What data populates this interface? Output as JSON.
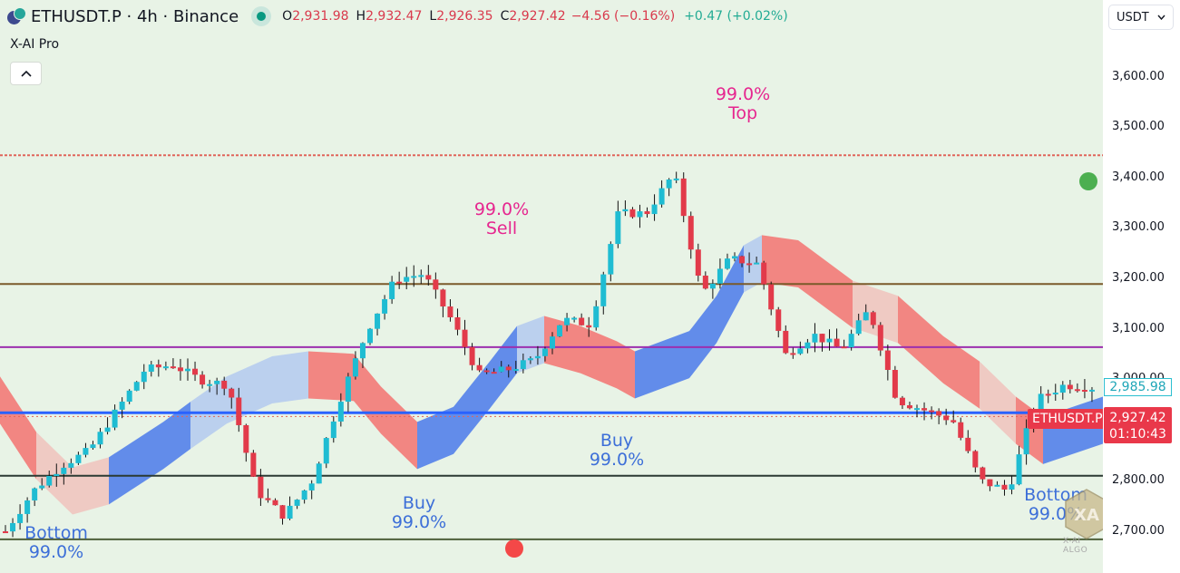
{
  "header": {
    "symbol_title": "ETHUSDT.P · 4h · Binance",
    "ohlc": [
      {
        "key": "O",
        "value": "2,931.98"
      },
      {
        "key": "H",
        "value": "2,932.47"
      },
      {
        "key": "L",
        "value": "2,926.35"
      },
      {
        "key": "C",
        "value": "2,927.42"
      }
    ],
    "change": "−4.56 (−0.16%)",
    "post_change": "+0.47 (+0.02%)",
    "indicator_name": "X-AI Pro",
    "collapse_icon": "chevron-up-icon"
  },
  "price_axis": {
    "currency": "USDT",
    "ticks": [
      "3,600.00",
      "3,500.00",
      "3,400.00",
      "3,300.00",
      "3,200.00",
      "3,100.00",
      "3,000.00",
      "2,900.00",
      "2,800.00",
      "2,700.00"
    ],
    "pre_market_price": "2,985.98",
    "last_price": "2,927.42",
    "countdown": "01:10:43",
    "symbol_label": "ETHUSDT.P"
  },
  "annotations": [
    {
      "id": "bottom-left",
      "line1": "Bottom",
      "line2": "99.0%",
      "color": "blue"
    },
    {
      "id": "buy-1",
      "line1": "Buy",
      "line2": "99.0%",
      "color": "blue"
    },
    {
      "id": "sell-1",
      "line1": "99.0%",
      "line2": "Sell",
      "color": "pink"
    },
    {
      "id": "buy-2",
      "line1": "Buy",
      "line2": "99.0%",
      "color": "blue"
    },
    {
      "id": "top-1",
      "line1": "99.0%",
      "line2": "Top",
      "color": "pink"
    },
    {
      "id": "bottom-right",
      "line1": "Bottom",
      "line2": "99.0%",
      "color": "blue"
    }
  ],
  "watermark": {
    "text": "X-AI ALGO"
  },
  "colors": {
    "up": "#1fbcd2",
    "down": "#e23a4a",
    "band_bull": "#5b86ea",
    "band_bull_light": "#b8cdee",
    "band_bear": "#f2807c",
    "band_bear_light": "#efc7c1",
    "background": "#e8f3e6"
  },
  "chart_data": {
    "type": "candlestick",
    "title": "ETHUSDT.P · 4h · Binance",
    "indicator": "X-AI Pro",
    "ylabel": "USDT",
    "ylim": [
      2650,
      3650
    ],
    "yticks": [
      2700,
      2800,
      2900,
      3000,
      3100,
      3200,
      3300,
      3400,
      3500,
      3600
    ],
    "last": {
      "open": 2931.98,
      "high": 2932.47,
      "low": 2926.35,
      "close": 2927.42,
      "change": -4.56,
      "change_pct": -0.16
    },
    "horizontal_levels": [
      {
        "price": 3445,
        "color": "#e0645a",
        "style": "dashed"
      },
      {
        "price": 3190,
        "color": "#7a5a2a",
        "style": "solid"
      },
      {
        "price": 3065,
        "color": "#9c2fae",
        "style": "solid"
      },
      {
        "price": 2935,
        "color": "#2962ff",
        "style": "solid"
      },
      {
        "price": 2927.42,
        "color": "#e0645a",
        "style": "dotted"
      },
      {
        "price": 2810,
        "color": "#2b3a33",
        "style": "solid"
      },
      {
        "price": 2684,
        "color": "#4e5f3a",
        "style": "solid"
      }
    ],
    "signals": [
      {
        "label": "Bottom",
        "confidence": "99.0%",
        "approx_price": 2700,
        "position": "left"
      },
      {
        "label": "Buy",
        "confidence": "99.0%",
        "approx_price": 2720,
        "position": "early"
      },
      {
        "label": "Sell",
        "confidence": "99.0%",
        "approx_price": 3230,
        "position": "mid"
      },
      {
        "label": "Buy",
        "confidence": "99.0%",
        "approx_price": 2900,
        "position": "mid"
      },
      {
        "label": "Top",
        "confidence": "99.0%",
        "approx_price": 3445,
        "position": "center-right"
      },
      {
        "label": "Bottom",
        "confidence": "99.0%",
        "approx_price": 2770,
        "position": "right"
      }
    ],
    "price_path_approx": [
      2700,
      2780,
      2830,
      2860,
      2940,
      3020,
      3030,
      3000,
      2990,
      2780,
      2730,
      2800,
      2960,
      3100,
      3200,
      3210,
      3120,
      3010,
      3020,
      3040,
      3120,
      3110,
      3330,
      3330,
      3410,
      3170,
      3240,
      3230,
      3050,
      3090,
      3060,
      3140,
      2960,
      2940,
      2920,
      2800,
      2780,
      2960,
      2990,
      2985
    ]
  }
}
